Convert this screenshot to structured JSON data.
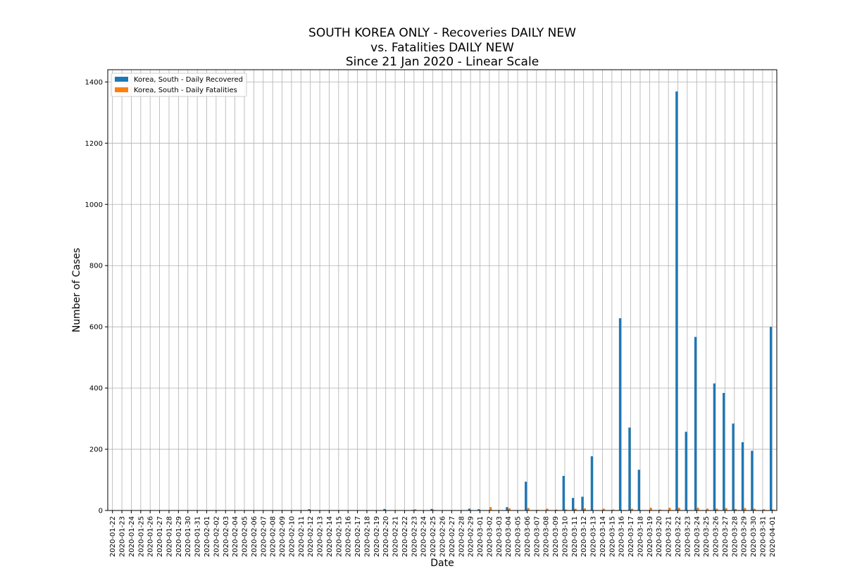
{
  "chart_data": {
    "type": "bar",
    "title_lines": [
      "SOUTH KOREA ONLY - Recoveries DAILY NEW",
      "vs. Fatalities DAILY NEW",
      "Since 21 Jan 2020 - Linear Scale"
    ],
    "xlabel": "Date",
    "ylabel": "Number of Cases",
    "ylim": [
      0,
      1440
    ],
    "yticks": [
      0,
      200,
      400,
      600,
      800,
      1000,
      1200,
      1400
    ],
    "grid": true,
    "legend_position": "top-left",
    "categories": [
      "2020-01-22",
      "2020-01-23",
      "2020-01-24",
      "2020-01-25",
      "2020-01-26",
      "2020-01-27",
      "2020-01-28",
      "2020-01-29",
      "2020-01-30",
      "2020-01-31",
      "2020-02-01",
      "2020-02-02",
      "2020-02-03",
      "2020-02-04",
      "2020-02-05",
      "2020-02-06",
      "2020-02-07",
      "2020-02-08",
      "2020-02-09",
      "2020-02-10",
      "2020-02-11",
      "2020-02-12",
      "2020-02-13",
      "2020-02-14",
      "2020-02-15",
      "2020-02-16",
      "2020-02-17",
      "2020-02-18",
      "2020-02-19",
      "2020-02-20",
      "2020-02-21",
      "2020-02-22",
      "2020-02-23",
      "2020-02-24",
      "2020-02-25",
      "2020-02-26",
      "2020-02-27",
      "2020-02-28",
      "2020-02-29",
      "2020-03-01",
      "2020-03-02",
      "2020-03-03",
      "2020-03-04",
      "2020-03-05",
      "2020-03-06",
      "2020-03-07",
      "2020-03-08",
      "2020-03-09",
      "2020-03-10",
      "2020-03-11",
      "2020-03-12",
      "2020-03-13",
      "2020-03-14",
      "2020-03-15",
      "2020-03-16",
      "2020-03-17",
      "2020-03-18",
      "2020-03-19",
      "2020-03-20",
      "2020-03-21",
      "2020-03-22",
      "2020-03-23",
      "2020-03-24",
      "2020-03-25",
      "2020-03-26",
      "2020-03-27",
      "2020-03-28",
      "2020-03-29",
      "2020-03-30",
      "2020-03-31",
      "2020-04-01"
    ],
    "series": [
      {
        "name": "Korea, South - Daily Recovered",
        "color": "#1f77b4",
        "values": [
          0,
          0,
          0,
          0,
          0,
          0,
          0,
          0,
          0,
          0,
          0,
          0,
          0,
          0,
          0,
          0,
          1,
          0,
          1,
          0,
          0,
          4,
          0,
          0,
          1,
          0,
          1,
          1,
          0,
          5,
          0,
          0,
          2,
          0,
          5,
          0,
          0,
          0,
          6,
          4,
          0,
          0,
          11,
          0,
          94,
          0,
          0,
          0,
          113,
          41,
          45,
          177,
          0,
          0,
          628,
          271,
          133,
          0,
          0,
          0,
          1369,
          257,
          567,
          0,
          415,
          384,
          284,
          223,
          195,
          0,
          600
        ]
      },
      {
        "name": "Korea, South - Daily Fatalities",
        "color": "#ff7f0e",
        "values": [
          0,
          0,
          0,
          0,
          0,
          0,
          0,
          0,
          0,
          0,
          0,
          0,
          0,
          0,
          0,
          0,
          0,
          0,
          0,
          0,
          0,
          0,
          0,
          0,
          0,
          0,
          0,
          0,
          0,
          1,
          1,
          0,
          4,
          0,
          2,
          1,
          0,
          0,
          1,
          1,
          11,
          0,
          7,
          0,
          8,
          2,
          6,
          3,
          3,
          6,
          7,
          0,
          6,
          3,
          0,
          6,
          0,
          9,
          3,
          9,
          9,
          0,
          9,
          6,
          6,
          8,
          5,
          8,
          6,
          4,
          3
        ]
      }
    ]
  }
}
